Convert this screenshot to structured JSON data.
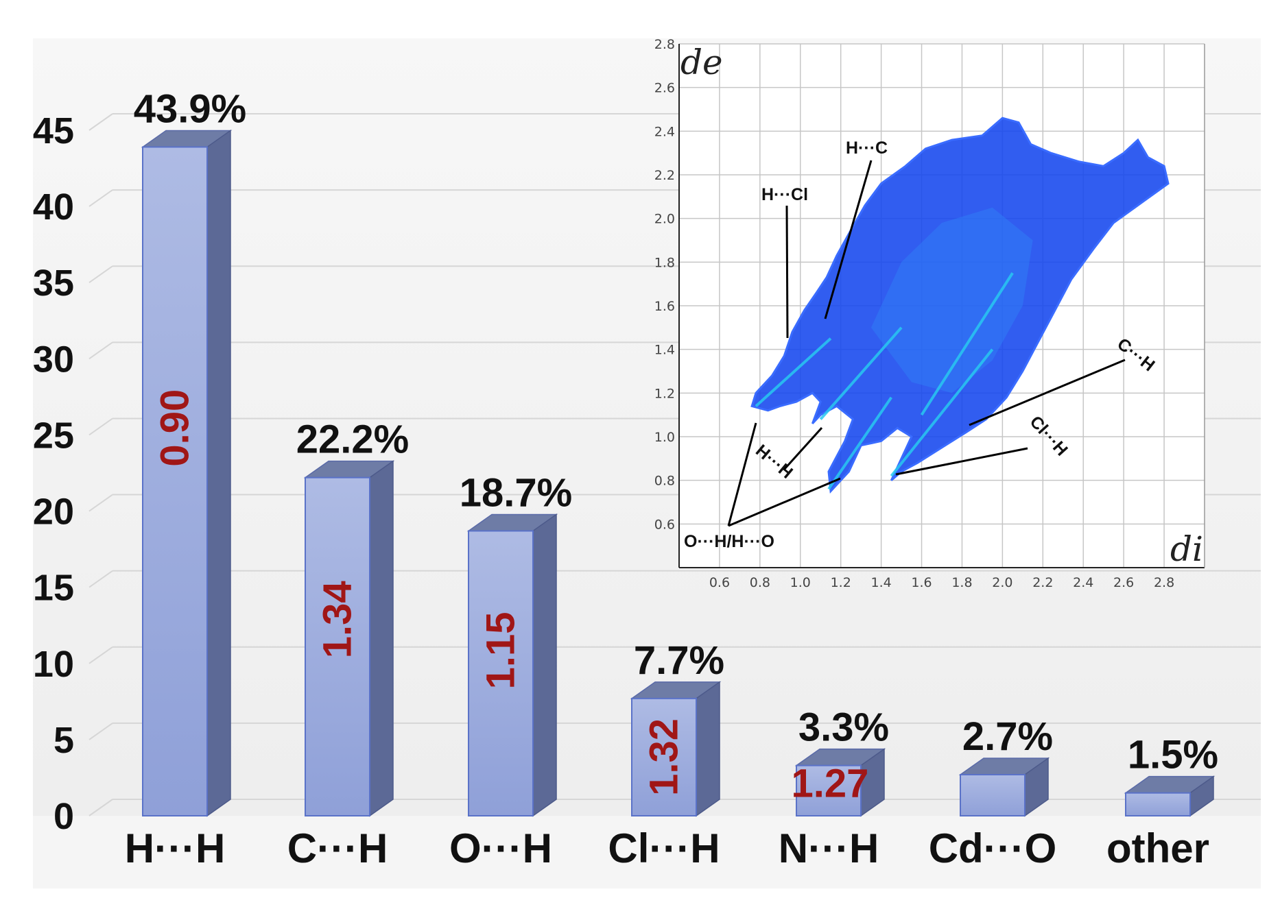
{
  "chart_data": [
    {
      "type": "bar",
      "categories": [
        "H···H",
        "C···H",
        "O···H",
        "Cl···H",
        "N···H",
        "Cd···O",
        "other"
      ],
      "values": [
        43.9,
        22.2,
        18.7,
        7.7,
        3.3,
        2.7,
        1.5
      ],
      "value_labels": [
        "43.9%",
        "22.2%",
        "18.7%",
        "7.7%",
        "3.3%",
        "2.7%",
        "1.5%"
      ],
      "inner_labels": [
        "0.90",
        "1.34",
        "1.15",
        "1.32",
        "1.27",
        "",
        ""
      ],
      "yticks": [
        "0",
        "5",
        "10",
        "15",
        "20",
        "25",
        "30",
        "35",
        "40",
        "45"
      ],
      "ylim": [
        0,
        45
      ],
      "grid": true,
      "colors": {
        "bar_front": "#8fa0d8",
        "bar_top": "#6e7ca6",
        "bar_side": "#5c6996",
        "inner_label": "#a01616"
      }
    },
    {
      "type": "scatter",
      "title": "",
      "xlabel": "di",
      "ylabel": "de",
      "xlim": [
        0.4,
        3.0
      ],
      "ylim": [
        0.4,
        2.8
      ],
      "xticks": [
        "0.6",
        "0.8",
        "1.0",
        "1.2",
        "1.4",
        "1.6",
        "1.8",
        "2.0",
        "2.2",
        "2.4",
        "2.6",
        "2.8"
      ],
      "yticks": [
        "0.6",
        "0.8",
        "1.0",
        "1.2",
        "1.4",
        "1.6",
        "1.8",
        "2.0",
        "2.2",
        "2.4",
        "2.6",
        "2.8"
      ],
      "grid": true,
      "colors": {
        "points": "#1447ee",
        "highlight": "#28c8f0"
      },
      "annotations": [
        {
          "text": "H···C",
          "x": 1.0,
          "y": 1.6
        },
        {
          "text": "H···Cl",
          "x": 0.95,
          "y": 1.55
        },
        {
          "text": "C···H",
          "x": 1.85,
          "y": 1.1
        },
        {
          "text": "Cl···H",
          "x": 1.5,
          "y": 0.83
        },
        {
          "text": "H···H",
          "x": 1.1,
          "y": 1.08
        },
        {
          "text": "O···H/H···O",
          "x": 0.78,
          "y": 1.15
        }
      ]
    }
  ]
}
